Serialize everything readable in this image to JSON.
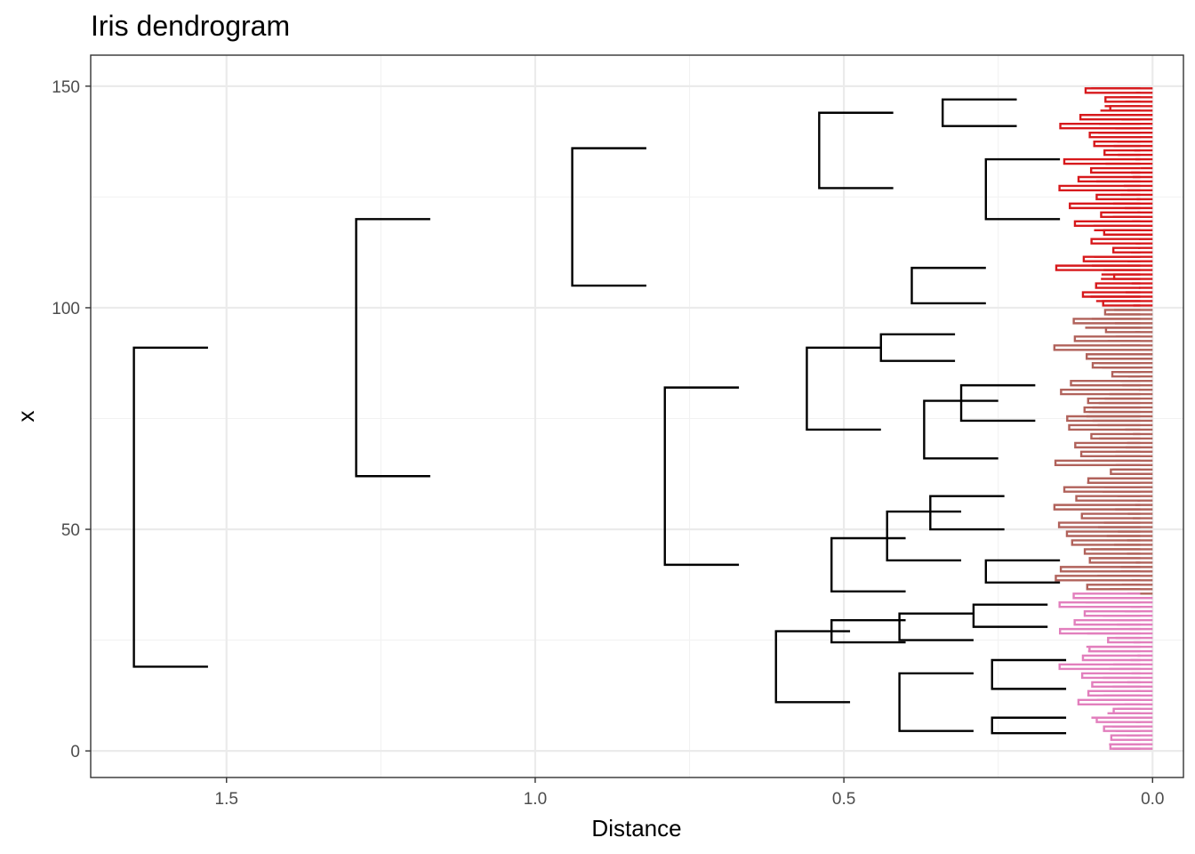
{
  "chart_data": {
    "type": "dendrogram",
    "title": "Iris dendrogram",
    "xlabel": "Distance",
    "ylabel": "x",
    "orientation": "horizontal",
    "x_reversed": true,
    "xlim": [
      1.72,
      -0.05
    ],
    "ylim": [
      -6,
      157
    ],
    "x_ticks": [
      1.5,
      1.0,
      0.5,
      0.0
    ],
    "x_tick_labels": [
      "1.5",
      "1.0",
      "0.5",
      "0.0"
    ],
    "y_ticks": [
      0,
      50,
      100,
      150
    ],
    "y_tick_labels": [
      "0",
      "50",
      "100",
      "150"
    ],
    "grid": true,
    "n_leaves": 150,
    "colors": {
      "branch": "#000000",
      "leaf_red": "#d7191c",
      "leaf_brown": "#b1625b",
      "leaf_pink": "#e27fbd"
    },
    "leaf_color_segments": [
      {
        "from": 0,
        "to": 35,
        "color": "pink"
      },
      {
        "from": 35,
        "to": 100,
        "color": "brown"
      },
      {
        "from": 100,
        "to": 150,
        "color": "red"
      }
    ],
    "merges": [
      {
        "height": 1.65,
        "y_low": 19.0,
        "y_high": 91.0
      },
      {
        "height": 1.29,
        "y_low": 62.0,
        "y_high": 120.0
      },
      {
        "height": 0.94,
        "y_low": 105.0,
        "y_high": 136.0
      },
      {
        "height": 0.79,
        "y_low": 42.0,
        "y_high": 82.0
      },
      {
        "height": 0.61,
        "y_low": 11.0,
        "y_high": 27.0
      },
      {
        "height": 0.56,
        "y_low": 72.5,
        "y_high": 91.0
      },
      {
        "height": 0.54,
        "y_low": 127.0,
        "y_high": 144.0
      },
      {
        "height": 0.52,
        "y_low": 36.0,
        "y_high": 48.0
      },
      {
        "height": 0.52,
        "y_low": 24.5,
        "y_high": 29.5
      },
      {
        "height": 0.44,
        "y_low": 88.0,
        "y_high": 94.0
      },
      {
        "height": 0.43,
        "y_low": 43.0,
        "y_high": 54.0
      },
      {
        "height": 0.41,
        "y_low": 25.0,
        "y_high": 31.0
      },
      {
        "height": 0.41,
        "y_low": 4.5,
        "y_high": 17.5
      },
      {
        "height": 0.39,
        "y_low": 101.0,
        "y_high": 109.0
      },
      {
        "height": 0.37,
        "y_low": 66.0,
        "y_high": 79.0
      },
      {
        "height": 0.36,
        "y_low": 50.0,
        "y_high": 57.5
      },
      {
        "height": 0.34,
        "y_low": 141.0,
        "y_high": 147.0
      },
      {
        "height": 0.31,
        "y_low": 74.5,
        "y_high": 82.5
      },
      {
        "height": 0.29,
        "y_low": 28.0,
        "y_high": 33.0
      },
      {
        "height": 0.27,
        "y_low": 38.0,
        "y_high": 43.0
      },
      {
        "height": 0.27,
        "y_low": 120.0,
        "y_high": 133.5
      },
      {
        "height": 0.26,
        "y_low": 4.0,
        "y_high": 7.5
      },
      {
        "height": 0.26,
        "y_low": 14.0,
        "y_high": 20.5
      }
    ]
  }
}
